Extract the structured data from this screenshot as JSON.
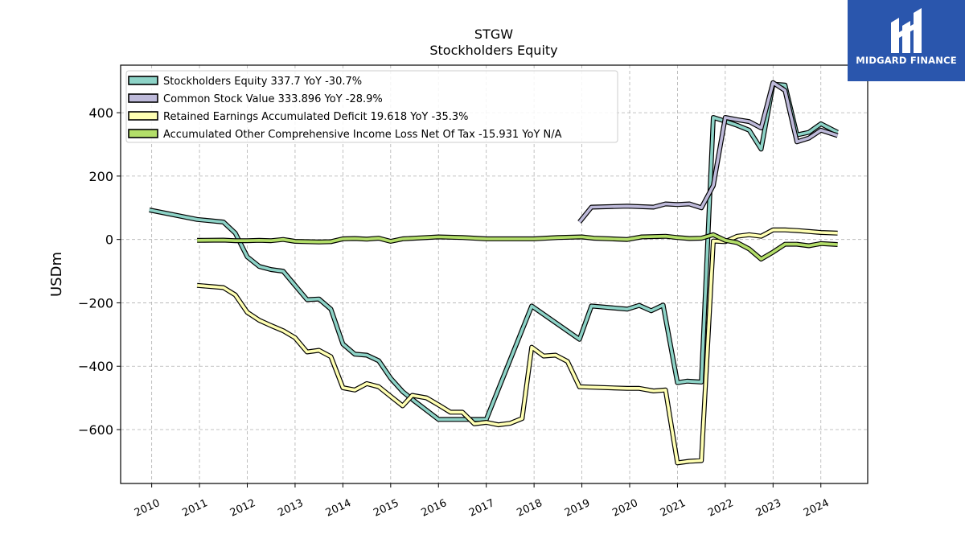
{
  "chart_data": {
    "type": "line",
    "title": "STGW",
    "subtitle": "Stockholders  Equity",
    "ylabel": "USDm",
    "xlabel": "",
    "ylim": [
      -770,
      550
    ],
    "xlim": [
      2009.35,
      2024.98
    ],
    "yticks": [
      -600,
      -400,
      -200,
      0,
      200,
      400
    ],
    "ytick_labels": [
      "−600",
      "−400",
      "−200",
      "0",
      "200",
      "400"
    ],
    "xticks": [
      2010,
      2011,
      2012,
      2013,
      2014,
      2015,
      2016,
      2017,
      2018,
      2019,
      2020,
      2021,
      2022,
      2023,
      2024
    ],
    "grid": true,
    "legend_position": "top-left",
    "series": [
      {
        "name": "Stockholders Equity",
        "legend": "Stockholders Equity  337.7 YoY -30.7%",
        "color": "#8dd3c7",
        "points": [
          [
            2009.95,
            93
          ],
          [
            2010.95,
            63
          ],
          [
            2011.5,
            55
          ],
          [
            2011.75,
            20
          ],
          [
            2012.0,
            -55
          ],
          [
            2012.25,
            -85
          ],
          [
            2012.5,
            -95
          ],
          [
            2012.75,
            -100
          ],
          [
            2013.0,
            -145
          ],
          [
            2013.25,
            -190
          ],
          [
            2013.5,
            -188
          ],
          [
            2013.75,
            -220
          ],
          [
            2014.0,
            -330
          ],
          [
            2014.25,
            -362
          ],
          [
            2014.5,
            -365
          ],
          [
            2014.75,
            -383
          ],
          [
            2015.0,
            -438
          ],
          [
            2015.25,
            -480
          ],
          [
            2015.5,
            -510
          ],
          [
            2016.0,
            -568
          ],
          [
            2016.5,
            -568
          ],
          [
            2017.0,
            -568
          ],
          [
            2017.95,
            -210
          ],
          [
            2018.95,
            -315
          ],
          [
            2019.2,
            -210
          ],
          [
            2019.95,
            -220
          ],
          [
            2020.2,
            -208
          ],
          [
            2020.45,
            -225
          ],
          [
            2020.7,
            -207
          ],
          [
            2021.0,
            -452
          ],
          [
            2021.2,
            -447
          ],
          [
            2021.5,
            -450
          ],
          [
            2021.75,
            385
          ],
          [
            2022.0,
            373
          ],
          [
            2022.25,
            360
          ],
          [
            2022.5,
            345
          ],
          [
            2022.75,
            285
          ],
          [
            2023.0,
            490
          ],
          [
            2023.25,
            487
          ],
          [
            2023.5,
            330
          ],
          [
            2023.75,
            338
          ],
          [
            2024.0,
            365
          ],
          [
            2024.35,
            338
          ]
        ]
      },
      {
        "name": "Common Stock Value",
        "legend": "Common Stock Value  333.896 YoY -28.9%",
        "color": "#bebada",
        "points": [
          [
            2018.95,
            55
          ],
          [
            2019.2,
            102
          ],
          [
            2019.95,
            105
          ],
          [
            2020.5,
            102
          ],
          [
            2020.75,
            112
          ],
          [
            2021.0,
            110
          ],
          [
            2021.25,
            112
          ],
          [
            2021.5,
            100
          ],
          [
            2021.75,
            170
          ],
          [
            2022.0,
            385
          ],
          [
            2022.25,
            378
          ],
          [
            2022.5,
            372
          ],
          [
            2022.75,
            352
          ],
          [
            2023.0,
            495
          ],
          [
            2023.25,
            470
          ],
          [
            2023.5,
            308
          ],
          [
            2023.75,
            320
          ],
          [
            2024.0,
            345
          ],
          [
            2024.35,
            328
          ]
        ]
      },
      {
        "name": "Retained Earnings Accumulated Deficit",
        "legend": "Retained Earnings Accumulated Deficit  19.618 YoY -35.3%",
        "color": "#ffffb3",
        "points": [
          [
            2010.95,
            -145
          ],
          [
            2011.5,
            -152
          ],
          [
            2011.75,
            -175
          ],
          [
            2012.0,
            -230
          ],
          [
            2012.25,
            -255
          ],
          [
            2012.5,
            -272
          ],
          [
            2012.75,
            -288
          ],
          [
            2013.0,
            -310
          ],
          [
            2013.25,
            -355
          ],
          [
            2013.5,
            -350
          ],
          [
            2013.75,
            -370
          ],
          [
            2014.0,
            -468
          ],
          [
            2014.25,
            -475
          ],
          [
            2014.5,
            -455
          ],
          [
            2014.75,
            -465
          ],
          [
            2015.0,
            -495
          ],
          [
            2015.25,
            -525
          ],
          [
            2015.45,
            -492
          ],
          [
            2015.75,
            -500
          ],
          [
            2016.0,
            -522
          ],
          [
            2016.25,
            -545
          ],
          [
            2016.5,
            -545
          ],
          [
            2016.75,
            -582
          ],
          [
            2017.0,
            -577
          ],
          [
            2017.25,
            -585
          ],
          [
            2017.5,
            -580
          ],
          [
            2017.75,
            -565
          ],
          [
            2017.95,
            -340
          ],
          [
            2018.2,
            -368
          ],
          [
            2018.45,
            -365
          ],
          [
            2018.7,
            -385
          ],
          [
            2018.95,
            -465
          ],
          [
            2019.95,
            -470
          ],
          [
            2020.2,
            -470
          ],
          [
            2020.5,
            -478
          ],
          [
            2020.75,
            -475
          ],
          [
            2021.0,
            -705
          ],
          [
            2021.25,
            -700
          ],
          [
            2021.5,
            -698
          ],
          [
            2021.75,
            -5
          ],
          [
            2022.0,
            -7
          ],
          [
            2022.25,
            10
          ],
          [
            2022.5,
            15
          ],
          [
            2022.75,
            10
          ],
          [
            2023.0,
            30
          ],
          [
            2023.25,
            30
          ],
          [
            2023.5,
            28
          ],
          [
            2023.75,
            25
          ],
          [
            2024.0,
            22
          ],
          [
            2024.35,
            20
          ]
        ]
      },
      {
        "name": "Accumulated Other Comprehensive Income Loss Net Of Tax",
        "legend": "Accumulated Other Comprehensive Income Loss Net Of Tax  -15.931 YoY N/A",
        "color": "#b3de69",
        "points": [
          [
            2010.95,
            -3
          ],
          [
            2011.5,
            -2
          ],
          [
            2011.75,
            -4
          ],
          [
            2012.0,
            -4
          ],
          [
            2012.25,
            -3
          ],
          [
            2012.5,
            -4
          ],
          [
            2012.75,
            0
          ],
          [
            2013.0,
            -6
          ],
          [
            2013.25,
            -7
          ],
          [
            2013.5,
            -8
          ],
          [
            2013.75,
            -7
          ],
          [
            2014.0,
            2
          ],
          [
            2014.25,
            3
          ],
          [
            2014.5,
            1
          ],
          [
            2014.75,
            4
          ],
          [
            2015.0,
            -6
          ],
          [
            2015.25,
            2
          ],
          [
            2015.5,
            4
          ],
          [
            2016.0,
            8
          ],
          [
            2016.5,
            6
          ],
          [
            2017.0,
            2
          ],
          [
            2018.0,
            2
          ],
          [
            2018.5,
            6
          ],
          [
            2019.0,
            8
          ],
          [
            2019.25,
            4
          ],
          [
            2019.95,
            0
          ],
          [
            2020.25,
            8
          ],
          [
            2020.75,
            10
          ],
          [
            2021.0,
            6
          ],
          [
            2021.25,
            3
          ],
          [
            2021.5,
            4
          ],
          [
            2021.75,
            15
          ],
          [
            2022.0,
            -3
          ],
          [
            2022.25,
            -10
          ],
          [
            2022.5,
            -30
          ],
          [
            2022.75,
            -62
          ],
          [
            2023.0,
            -40
          ],
          [
            2023.25,
            -15
          ],
          [
            2023.5,
            -15
          ],
          [
            2023.75,
            -20
          ],
          [
            2024.0,
            -13
          ],
          [
            2024.35,
            -16
          ]
        ]
      }
    ]
  },
  "logo": {
    "text": "MIDGARD FINANCE",
    "icon": "midgard-finance-logo-icon",
    "background": "#2a56ad"
  }
}
